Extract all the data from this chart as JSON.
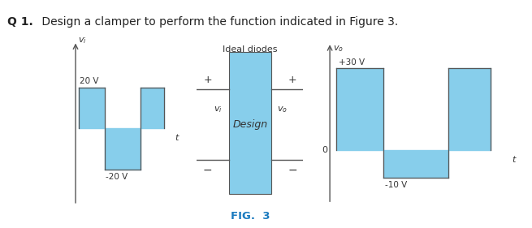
{
  "title_bold": "Q 1.",
  "title_normal": " Design a clamper to perform the function indicated in Figure 3.",
  "fig_label": "FIG.  3",
  "background_color": "#ffffff",
  "light_blue": "#87CEEB",
  "axis_color": "#555555",
  "text_color": "#444444",
  "fig3_label_color": "#1a7abf",
  "left_wave": {
    "pos_label": "20 V",
    "neg_label": "-20 V"
  },
  "right_wave": {
    "pos_label": "+30 V",
    "neg_label": "-10 V"
  },
  "box": {
    "label_top": "Ideal diodes",
    "label_center": "Design",
    "left_label": "v_i",
    "right_label": "v_o"
  }
}
